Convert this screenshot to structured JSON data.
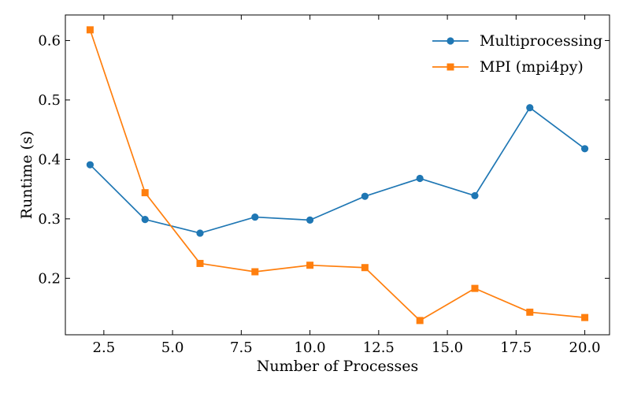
{
  "chart_data": {
    "type": "line",
    "title": "",
    "xlabel": "Number of Processes",
    "ylabel": "Runtime (s)",
    "xlim": [
      1.1,
      20.9
    ],
    "ylim": [
      0.105,
      0.643
    ],
    "xticks": [
      2.5,
      5.0,
      7.5,
      10.0,
      12.5,
      15.0,
      17.5,
      20.0
    ],
    "xtick_labels": [
      "2.5",
      "5.0",
      "7.5",
      "10.0",
      "12.5",
      "15.0",
      "17.5",
      "20.0"
    ],
    "yticks": [
      0.2,
      0.3,
      0.4,
      0.5,
      0.6
    ],
    "ytick_labels": [
      "0.2",
      "0.3",
      "0.4",
      "0.5",
      "0.6"
    ],
    "grid": false,
    "legend_position": "top-right",
    "x": [
      2,
      4,
      6,
      8,
      10,
      12,
      14,
      16,
      18,
      20
    ],
    "series": [
      {
        "name": "Multiprocessing",
        "color": "#1f77b4",
        "marker": "circle",
        "values": [
          0.391,
          0.299,
          0.276,
          0.303,
          0.298,
          0.338,
          0.368,
          0.339,
          0.487,
          0.418
        ]
      },
      {
        "name": "MPI (mpi4py)",
        "color": "#ff7f0e",
        "marker": "square",
        "values": [
          0.618,
          0.344,
          0.225,
          0.211,
          0.222,
          0.218,
          0.129,
          0.183,
          0.143,
          0.134
        ]
      }
    ]
  }
}
